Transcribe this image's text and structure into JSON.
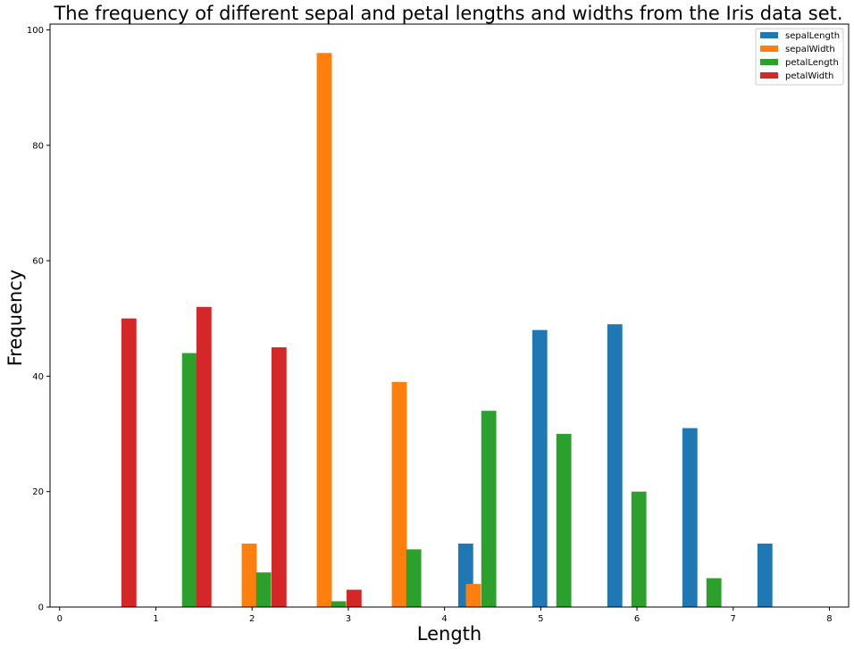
{
  "chart_data": {
    "type": "bar",
    "title": "The frequency of different sepal and petal lengths and widths from the Iris data set.",
    "xlabel": "Length",
    "ylabel": "Frequency",
    "xlim": [
      -0.1,
      8.2
    ],
    "ylim": [
      0,
      101
    ],
    "xticks": [
      "0",
      "1",
      "2",
      "3",
      "4",
      "5",
      "6",
      "7",
      "8"
    ],
    "yticks": [
      "0",
      "20",
      "40",
      "60",
      "80",
      "100"
    ],
    "legend_position": "top-right",
    "grid": false,
    "bar_width": 0.156,
    "series": [
      {
        "name": "sepalLength",
        "color": "#1f77b4",
        "bars": [
          {
            "x": 4.22,
            "value": 11
          },
          {
            "x": 4.99,
            "value": 48
          },
          {
            "x": 5.77,
            "value": 49
          },
          {
            "x": 6.55,
            "value": 31
          },
          {
            "x": 7.33,
            "value": 11
          }
        ]
      },
      {
        "name": "sepalWidth",
        "color": "#ff7f0e",
        "bars": [
          {
            "x": 1.97,
            "value": 11
          },
          {
            "x": 2.75,
            "value": 96
          },
          {
            "x": 3.53,
            "value": 39
          },
          {
            "x": 4.3,
            "value": 4
          }
        ]
      },
      {
        "name": "petalLength",
        "color": "#2ca02c",
        "bars": [
          {
            "x": 1.35,
            "value": 44
          },
          {
            "x": 2.12,
            "value": 6
          },
          {
            "x": 2.9,
            "value": 1
          },
          {
            "x": 3.68,
            "value": 10
          },
          {
            "x": 4.46,
            "value": 34
          },
          {
            "x": 5.24,
            "value": 30
          },
          {
            "x": 6.02,
            "value": 20
          },
          {
            "x": 6.8,
            "value": 5
          }
        ]
      },
      {
        "name": "petalWidth",
        "color": "#d62728",
        "bars": [
          {
            "x": 0.72,
            "value": 50
          },
          {
            "x": 1.5,
            "value": 52
          },
          {
            "x": 2.28,
            "value": 45
          },
          {
            "x": 3.06,
            "value": 3
          }
        ]
      }
    ]
  }
}
